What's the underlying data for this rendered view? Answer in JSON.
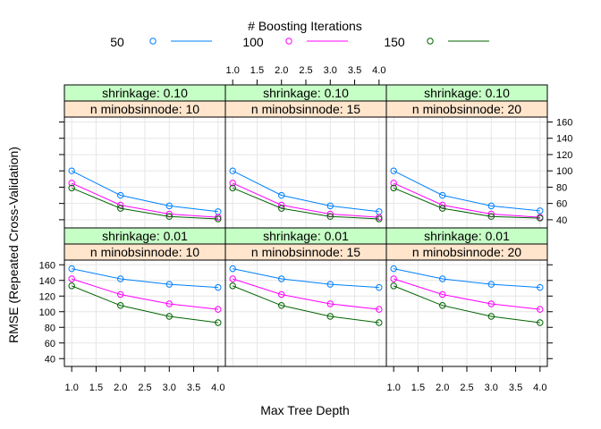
{
  "chart_data": {
    "type": "line",
    "legend": {
      "title": "# Boosting Iterations",
      "placement": "top"
    },
    "xlabel": "Max Tree Depth",
    "ylabel": "RMSE (Repeated Cross-Validation)",
    "x": [
      1,
      2,
      3,
      4
    ],
    "xlim": [
      0.85,
      4.15
    ],
    "ylim": [
      30,
      166
    ],
    "xticks": [
      1.0,
      1.5,
      2.0,
      2.5,
      3.0,
      3.5,
      4.0
    ],
    "xtick_labels": [
      "1.0",
      "1.5",
      "2.0",
      "2.5",
      "3.0",
      "3.5",
      "4.0"
    ],
    "yticks": [
      40,
      60,
      80,
      100,
      120,
      140,
      160
    ],
    "ytick_labels": [
      "40",
      "60",
      "80",
      "100",
      "120",
      "140",
      "160"
    ],
    "grid": true,
    "series_styles": [
      {
        "name": "50",
        "color": "#0080ff"
      },
      {
        "name": "100",
        "color": "#ff00ff"
      },
      {
        "name": "150",
        "color": "#006400"
      }
    ],
    "panels": [
      {
        "strip_top": "shrinkage: 0.10",
        "strip_bottom": "n minobsinnode: 10",
        "series": [
          {
            "name": "50",
            "values": [
              100,
              70,
              57,
              50
            ]
          },
          {
            "name": "100",
            "values": [
              85,
              58,
              47,
              43
            ]
          },
          {
            "name": "150",
            "values": [
              79,
              54,
              44,
              41
            ]
          }
        ]
      },
      {
        "strip_top": "shrinkage: 0.10",
        "strip_bottom": "n minobsinnode: 15",
        "series": [
          {
            "name": "50",
            "values": [
              100,
              70,
              57,
              50
            ]
          },
          {
            "name": "100",
            "values": [
              85,
              58,
              47,
              43
            ]
          },
          {
            "name": "150",
            "values": [
              79,
              54,
              44,
              41
            ]
          }
        ]
      },
      {
        "strip_top": "shrinkage: 0.10",
        "strip_bottom": "n minobsinnode: 20",
        "series": [
          {
            "name": "50",
            "values": [
              100,
              70,
              57,
              51
            ]
          },
          {
            "name": "100",
            "values": [
              85,
              58,
              47,
              43
            ]
          },
          {
            "name": "150",
            "values": [
              79,
              54,
              44,
              42
            ]
          }
        ]
      },
      {
        "strip_top": "shrinkage: 0.01",
        "strip_bottom": "n minobsinnode: 10",
        "series": [
          {
            "name": "50",
            "values": [
              155,
              142,
              135,
              131
            ]
          },
          {
            "name": "100",
            "values": [
              142,
              122,
              110,
              103
            ]
          },
          {
            "name": "150",
            "values": [
              133,
              108,
              94,
              86
            ]
          }
        ]
      },
      {
        "strip_top": "shrinkage: 0.01",
        "strip_bottom": "n minobsinnode: 15",
        "series": [
          {
            "name": "50",
            "values": [
              155,
              142,
              135,
              131
            ]
          },
          {
            "name": "100",
            "values": [
              142,
              122,
              110,
              103
            ]
          },
          {
            "name": "150",
            "values": [
              133,
              108,
              94,
              86
            ]
          }
        ]
      },
      {
        "strip_top": "shrinkage: 0.01",
        "strip_bottom": "n minobsinnode: 20",
        "series": [
          {
            "name": "50",
            "values": [
              155,
              142,
              135,
              131
            ]
          },
          {
            "name": "100",
            "values": [
              142,
              122,
              110,
              103
            ]
          },
          {
            "name": "150",
            "values": [
              133,
              108,
              94,
              86
            ]
          }
        ]
      }
    ]
  }
}
